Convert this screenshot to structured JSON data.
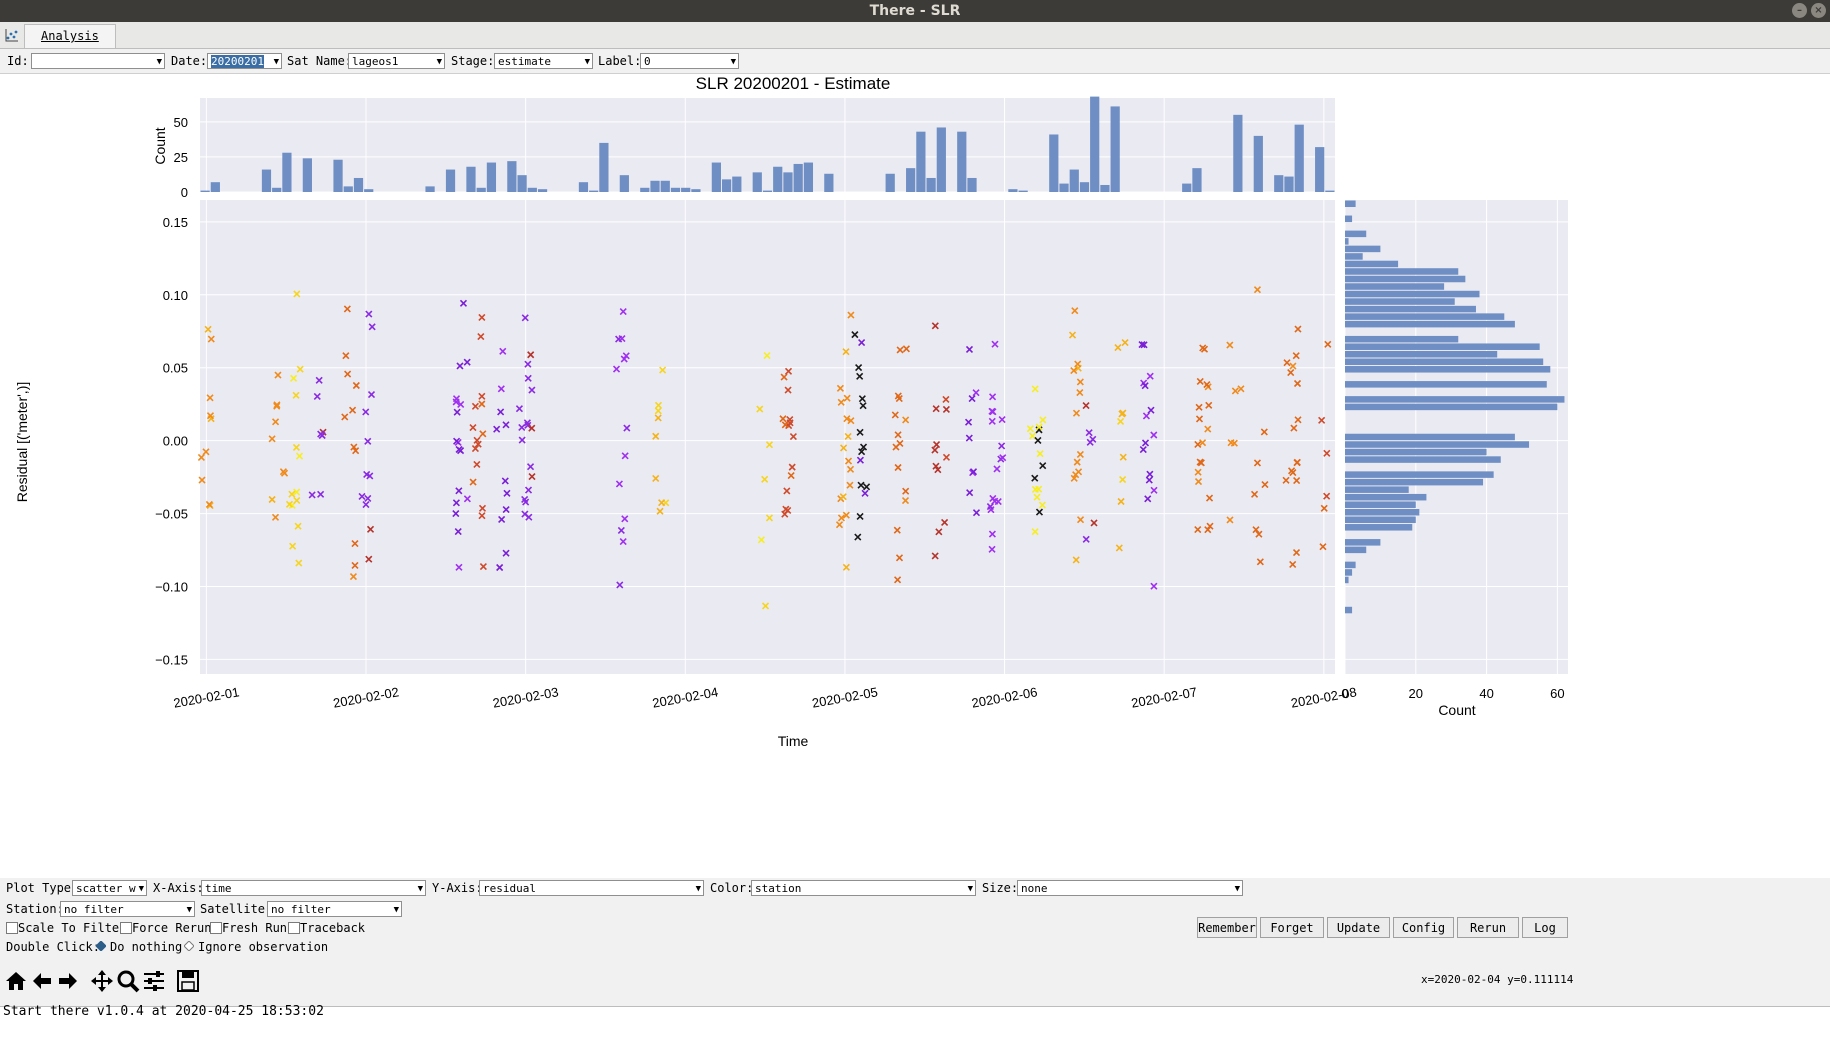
{
  "window": {
    "title": "There - SLR",
    "min_glyph": "–",
    "close_glyph": "×"
  },
  "tabs": [
    {
      "label": "Analysis"
    }
  ],
  "filters": {
    "id_label": "Id:",
    "id_value": "",
    "date_label": "Date:",
    "date_value": "20200201",
    "sat_label": "Sat Name:",
    "sat_value": "lageos1",
    "stage_label": "Stage:",
    "stage_value": "estimate",
    "label_label": "Label:",
    "label_value": "0"
  },
  "chart_data": {
    "type": "scatter",
    "title": "SLR 20200201 - Estimate",
    "xlabel": "Time",
    "ylabel": "Residual [('meter',)]",
    "x_ticks": [
      "2020-02-01",
      "2020-02-02",
      "2020-02-03",
      "2020-02-04",
      "2020-02-05",
      "2020-02-06",
      "2020-02-07",
      "2020-02-08"
    ],
    "y_ticks": [
      "0.15",
      "0.10",
      "0.05",
      "0.00",
      "−0.05",
      "−0.10",
      "−0.15"
    ],
    "y_tick_values": [
      0.15,
      0.1,
      0.05,
      0.0,
      -0.05,
      -0.1,
      -0.15
    ],
    "ylim": [
      -0.16,
      0.165
    ],
    "xlim_days": [
      -0.04,
      7.07
    ],
    "grid": true,
    "top_hist": {
      "ylabel": "Count",
      "y_ticks": [
        "0",
        "25",
        "50"
      ],
      "y_tick_values": [
        0,
        25,
        50
      ],
      "ylim": [
        0,
        67
      ]
    },
    "right_hist": {
      "xlabel": "Count",
      "x_ticks": [
        "0",
        "20",
        "40",
        "60"
      ],
      "x_tick_values": [
        0,
        20,
        40,
        60
      ],
      "xlim": [
        0,
        63
      ]
    },
    "color_by": "station",
    "station_colors": [
      "#1a1a1a",
      "#7a1fd6",
      "#a030f0",
      "#8a2be2",
      "#b5332a",
      "#cf4a2a",
      "#e06818",
      "#f08a1a",
      "#f5b31a",
      "#f7d51c",
      "#f7ee20"
    ],
    "top_hist_counts": [
      1,
      7,
      0,
      0,
      0,
      0,
      16,
      3,
      28,
      0,
      24,
      0,
      0,
      23,
      4,
      10,
      2,
      0,
      0,
      0,
      0,
      0,
      4,
      0,
      16,
      0,
      18,
      3,
      21,
      0,
      22,
      12,
      3,
      2,
      0,
      0,
      0,
      7,
      1,
      35,
      0,
      12,
      0,
      3,
      8,
      8,
      3,
      3,
      2,
      0,
      21,
      9,
      11,
      0,
      14,
      1,
      18,
      14,
      20,
      21,
      0,
      13,
      0,
      0,
      0,
      0,
      0,
      13,
      0,
      17,
      43,
      10,
      46,
      0,
      43,
      10,
      0,
      0,
      0,
      2,
      1,
      0,
      0,
      41,
      6,
      16,
      7,
      68,
      5,
      61,
      0,
      0,
      0,
      0,
      0,
      0,
      6,
      17,
      0,
      0,
      0,
      55,
      0,
      40,
      0,
      12,
      11,
      48,
      0,
      32,
      1
    ],
    "right_hist_counts": [
      3,
      0,
      2,
      0,
      6,
      1,
      10,
      5,
      15,
      32,
      34,
      28,
      38,
      31,
      37,
      45,
      48,
      0,
      32,
      55,
      43,
      56,
      58,
      0,
      57,
      0,
      62,
      60,
      0,
      0,
      0,
      48,
      52,
      40,
      44,
      0,
      42,
      39,
      18,
      23,
      20,
      21,
      20,
      19,
      0,
      10,
      6,
      0,
      3,
      2,
      1,
      0,
      0,
      0,
      2,
      0,
      0,
      0,
      0,
      0,
      0,
      0,
      0
    ]
  },
  "controls": {
    "plot_type_label": "Plot Type:",
    "plot_type_value": "scatter w",
    "xaxis_label": "X-Axis:",
    "xaxis_value": "time",
    "yaxis_label": "Y-Axis:",
    "yaxis_value": "residual",
    "color_label": "Color:",
    "color_value": "station",
    "size_label": "Size:",
    "size_value": "none",
    "station_label": "Station:",
    "station_value": "no filter",
    "satellite_label": "Satellite:",
    "satellite_value": "no filter",
    "checkboxes": [
      "Scale To Filter",
      "Force Rerun",
      "Fresh Run",
      "Traceback"
    ],
    "buttons": [
      "Remember",
      "Forget",
      "Update",
      "Config",
      "Rerun",
      "Log"
    ],
    "double_click_label": "Double Click:",
    "radio_options": [
      "Do nothing",
      "Ignore observation"
    ],
    "radio_selected": "Do nothing",
    "coords": "x=2020-02-04 y=0.111114"
  },
  "status": {
    "message": "Start there v1.0.4 at 2020-04-25 18:53:02"
  }
}
